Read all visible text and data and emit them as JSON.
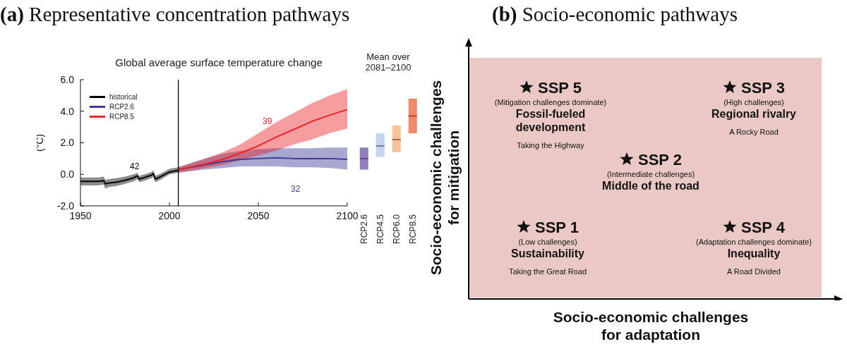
{
  "chart_data": [
    {
      "type": "line",
      "title": "(a) Representative concentration pathways",
      "subtitle": "Global average surface temperature change",
      "ylabel": "(°C)",
      "xlim": [
        1950,
        2100
      ],
      "xticks": [
        1950,
        2000,
        2050,
        2100
      ],
      "ylim": [
        -2,
        6
      ],
      "yticks": [
        {
          "value": -2,
          "label": "-2.0"
        },
        {
          "value": 0,
          "label": "0.0"
        },
        {
          "value": 2,
          "label": "2.0"
        },
        {
          "value": 4,
          "label": "4.0"
        },
        {
          "value": 6,
          "label": "6.0"
        }
      ],
      "grid": false,
      "legend": "top left",
      "marker": "none",
      "line_style": "solid",
      "series": [
        {
          "name": "historical",
          "color": "#000000",
          "x": [
            1950,
            1955,
            1960,
            1963,
            1964,
            1966,
            1970,
            1975,
            1980,
            1982,
            1983,
            1986,
            1990,
            1991,
            1992,
            1995,
            2000,
            2005
          ],
          "values": [
            -0.45,
            -0.45,
            -0.45,
            -0.4,
            -0.6,
            -0.55,
            -0.5,
            -0.38,
            -0.22,
            -0.1,
            -0.3,
            -0.2,
            -0.05,
            0.05,
            -0.3,
            -0.15,
            0.15,
            0.25
          ],
          "lower": [
            -0.7,
            -0.7,
            -0.7,
            -0.65,
            -0.9,
            -0.8,
            -0.75,
            -0.6,
            -0.45,
            -0.3,
            -0.5,
            -0.4,
            -0.25,
            -0.15,
            -0.5,
            -0.35,
            0,
            0.1
          ],
          "upper": [
            -0.2,
            -0.2,
            -0.2,
            -0.15,
            -0.35,
            -0.3,
            -0.25,
            -0.15,
            0,
            0.1,
            -0.1,
            0,
            0.15,
            0.25,
            -0.1,
            0.05,
            0.35,
            0.45
          ]
        },
        {
          "name": "RCP2.6",
          "color": "#3b3b9a",
          "x": [
            2005,
            2020,
            2030,
            2040,
            2050,
            2060,
            2070,
            2080,
            2090,
            2100
          ],
          "values": [
            0.3,
            0.6,
            0.8,
            0.95,
            1.0,
            1.05,
            1.0,
            1.0,
            1.0,
            0.95
          ],
          "lower": [
            0.1,
            0.3,
            0.4,
            0.5,
            0.5,
            0.5,
            0.45,
            0.45,
            0.4,
            0.3
          ],
          "upper": [
            0.45,
            1.0,
            1.3,
            1.5,
            1.6,
            1.65,
            1.65,
            1.65,
            1.7,
            1.7
          ]
        },
        {
          "name": "RCP8.5",
          "color": "#e8262a",
          "x": [
            2005,
            2020,
            2030,
            2040,
            2050,
            2060,
            2070,
            2080,
            2090,
            2100
          ],
          "values": [
            0.3,
            0.65,
            0.95,
            1.35,
            1.8,
            2.35,
            2.85,
            3.35,
            3.75,
            4.1
          ],
          "lower": [
            0.1,
            0.4,
            0.6,
            0.9,
            1.2,
            1.5,
            1.9,
            2.2,
            2.6,
            2.9
          ],
          "upper": [
            0.45,
            1.0,
            1.4,
            1.9,
            2.6,
            3.3,
            3.9,
            4.5,
            5.0,
            5.4
          ]
        }
      ],
      "ref_lines": [
        {
          "axis": "x",
          "value": 2005,
          "color": "#000000"
        }
      ],
      "annotations": [
        "42",
        "32",
        "39"
      ]
    },
    {
      "type": "box",
      "title": "Mean over 2081–2100",
      "categories": [
        "RCP2.6",
        "RCP4.5",
        "RCP6.0",
        "RCP8.5"
      ],
      "ylim": [
        -2,
        6
      ],
      "yticks": [
        {
          "value": -2,
          "label": null
        },
        {
          "value": 0,
          "label": null
        },
        {
          "value": 2,
          "label": null
        },
        {
          "value": 4,
          "label": null
        },
        {
          "value": 6,
          "label": null
        }
      ],
      "tick_labels": "x",
      "colors": [
        "#8f80b8",
        "#c5d3ec",
        "#f9c39a",
        "#ef8a6c"
      ],
      "boxes": [
        {
          "low": 0.3,
          "q1": 0.3,
          "median": 1.0,
          "q3": 1.7,
          "high": 1.7
        },
        {
          "low": 1.1,
          "q1": 1.1,
          "median": 1.8,
          "q3": 2.6,
          "high": 2.6
        },
        {
          "low": 1.4,
          "q1": 1.4,
          "median": 2.2,
          "q3": 3.1,
          "high": 3.1
        },
        {
          "low": 2.6,
          "q1": 2.6,
          "median": 3.7,
          "q3": 4.8,
          "high": 4.8
        }
      ]
    },
    {
      "type": "other",
      "title": "(b) Socio-economic pathways",
      "xlabel": "Socio-economic challenges for adaptation",
      "ylabel": "Socio-economic challenges for mitigation",
      "annotations": [
        "SSP 5",
        "(Mitigation challenges dominate)",
        "Fossil-fueled development",
        "Taking the Highway",
        "SSP 3",
        "(High challenges)",
        "Regional rivalry",
        "A Rocky Road",
        "SSP 2",
        "(Intermediate challenges)",
        "Middle of the road",
        "SSP 1",
        "(Low challenges)",
        "Sustainability",
        "Taking the Great Road",
        "SSP 4",
        "(Adaptation challenges dominate)",
        "Inequality",
        "A Road Divided"
      ]
    }
  ]
}
